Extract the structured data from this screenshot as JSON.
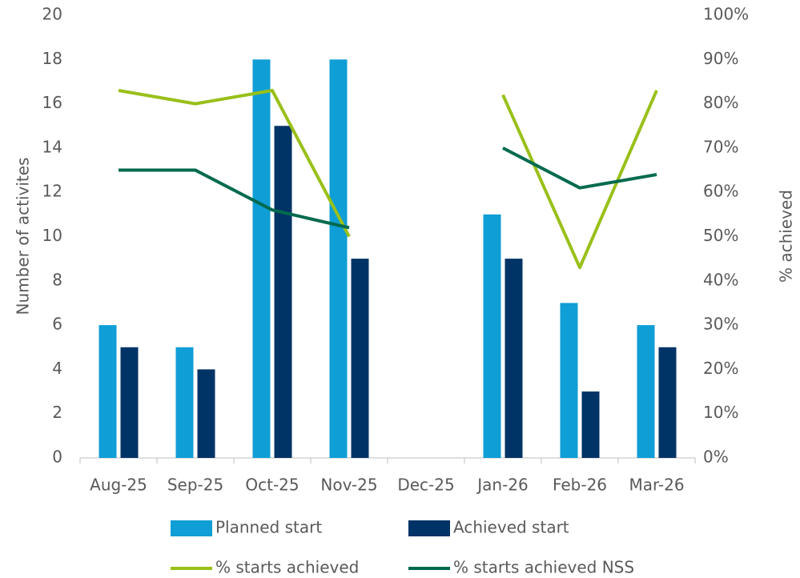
{
  "chart_data": {
    "type": "bar_line",
    "categories": [
      "Aug-25",
      "Sep-25",
      "Oct-25",
      "Nov-25",
      "Dec-25",
      "Jan-26",
      "Feb-26",
      "Mar-26"
    ],
    "ylabel": "Number of activites",
    "y2label": "% achieved",
    "ylim": [
      0,
      20
    ],
    "yticks": [
      0,
      2,
      4,
      6,
      8,
      10,
      12,
      14,
      16,
      18,
      20
    ],
    "y2lim": [
      0,
      100
    ],
    "y2ticks": [
      {
        "value": 0,
        "label": "0%"
      },
      {
        "value": 10,
        "label": "10%"
      },
      {
        "value": 20,
        "label": "20%"
      },
      {
        "value": 30,
        "label": "30%"
      },
      {
        "value": 40,
        "label": "40%"
      },
      {
        "value": 50,
        "label": "50%"
      },
      {
        "value": 60,
        "label": "60%"
      },
      {
        "value": 70,
        "label": "70%"
      },
      {
        "value": 80,
        "label": "80%"
      },
      {
        "value": 90,
        "label": "90%"
      },
      {
        "value": 100,
        "label": "100%"
      }
    ],
    "grid": false,
    "legend": "bottom",
    "series": [
      {
        "name": "Planned start",
        "type": "bar",
        "color": "#0f9ed5",
        "values": [
          6,
          5,
          18,
          18,
          null,
          11,
          7,
          6
        ]
      },
      {
        "name": "Achieved start",
        "type": "bar",
        "color": "#003366",
        "values": [
          5,
          4,
          15,
          9,
          null,
          9,
          3,
          5
        ]
      },
      {
        "name": "% starts achieved",
        "type": "line",
        "axis": "y2",
        "color": "#99c01a",
        "values": [
          83,
          80,
          83,
          50,
          null,
          82,
          43,
          83
        ]
      },
      {
        "name": "% starts achieved NSS",
        "type": "line",
        "axis": "y2",
        "color": "#006a4e",
        "values": [
          65,
          65,
          56,
          52,
          null,
          70,
          61,
          64
        ]
      }
    ]
  }
}
